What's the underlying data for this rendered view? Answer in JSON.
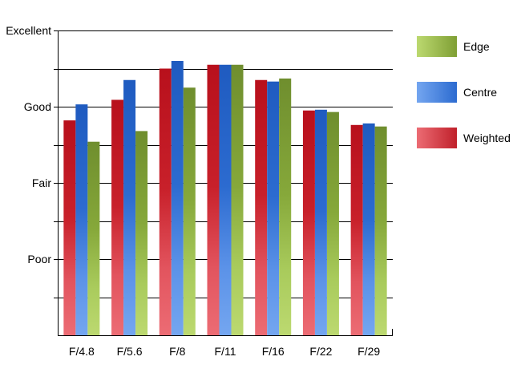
{
  "chart_data": {
    "type": "bar",
    "categories": [
      "F/4.8",
      "F/5.6",
      "F/8",
      "F/11",
      "F/16",
      "F/22",
      "F/29"
    ],
    "y_tick_labels": [
      "Poor",
      "Fair",
      "Good",
      "Excellent"
    ],
    "y_tick_values": [
      1,
      2,
      3,
      4
    ],
    "ylim": [
      0,
      4
    ],
    "grid": true,
    "legend_position": "right",
    "series": [
      {
        "name": "Weighted",
        "color": "#c0272d",
        "values": [
          2.82,
          3.09,
          3.5,
          3.55,
          3.35,
          2.95,
          2.76
        ]
      },
      {
        "name": "Centre",
        "color": "#2e6fcc",
        "values": [
          3.03,
          3.35,
          3.6,
          3.55,
          3.33,
          2.96,
          2.78
        ]
      },
      {
        "name": "Edge",
        "color": "#8aab3c",
        "values": [
          2.54,
          2.68,
          3.25,
          3.55,
          3.37,
          2.93,
          2.74
        ]
      }
    ],
    "legend": [
      {
        "series": "Edge",
        "label": "Edge"
      },
      {
        "series": "Centre",
        "label": "Centre"
      },
      {
        "series": "Weighted",
        "label": "Weighted"
      }
    ]
  }
}
